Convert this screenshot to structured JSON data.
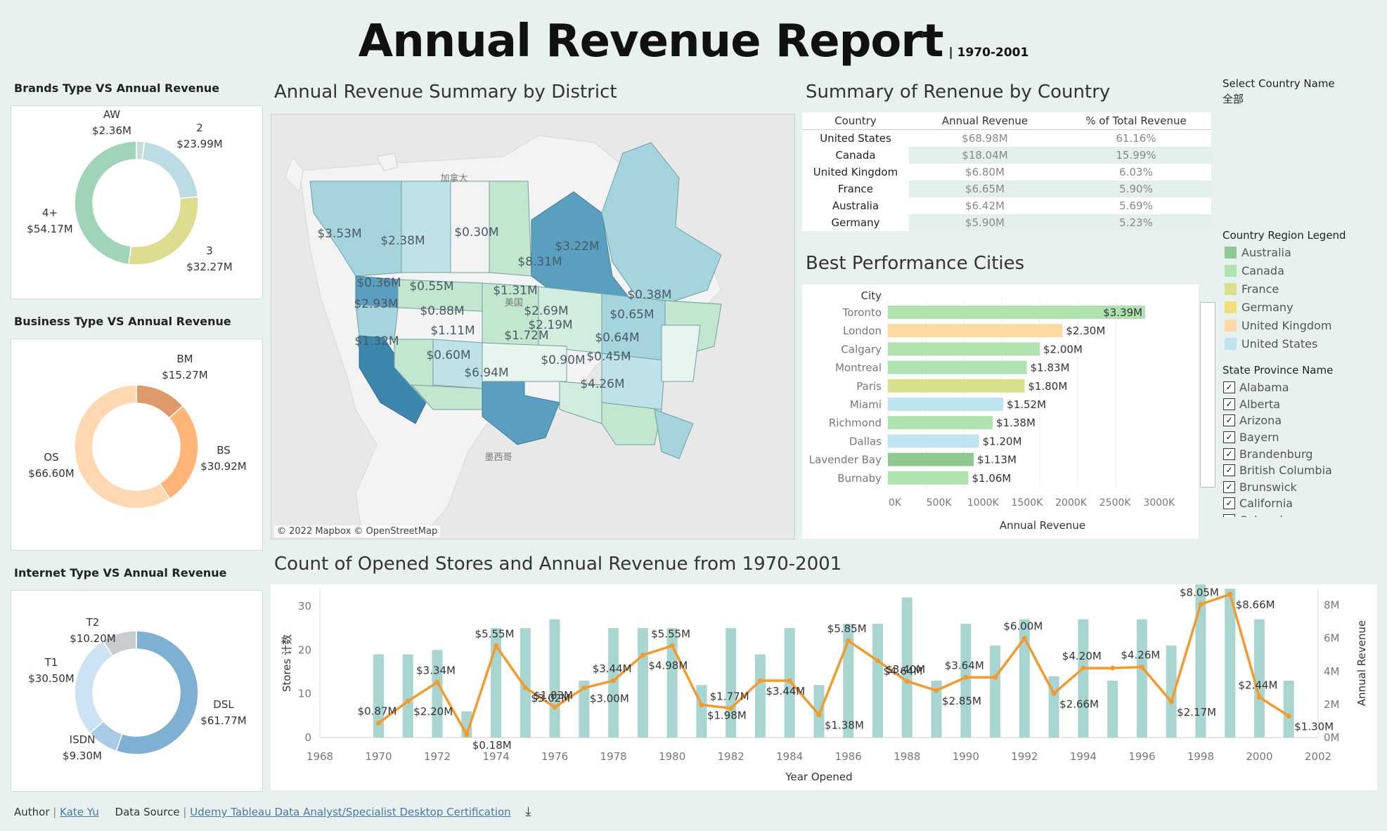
{
  "header": {
    "title": "Annual Revenue Report",
    "subtitle": "| 1970-2001"
  },
  "brands": {
    "title": "Brands Type VS Annual Revenue",
    "slices": [
      {
        "name": "AW",
        "value": "$2.36M",
        "v": 2.36,
        "color": "#c9dcd6"
      },
      {
        "name": "2",
        "value": "$23.99M",
        "v": 23.99,
        "color": "#bcdce3"
      },
      {
        "name": "3",
        "value": "$32.27M",
        "v": 32.27,
        "color": "#dedc8f"
      },
      {
        "name": "4+",
        "value": "$54.17M",
        "v": 54.17,
        "color": "#9fd4b8"
      }
    ]
  },
  "business": {
    "title": "Business Type VS Annual Revenue",
    "slices": [
      {
        "name": "BM",
        "value": "$15.27M",
        "v": 15.27,
        "color": "#de9a6b"
      },
      {
        "name": "BS",
        "value": "$30.92M",
        "v": 30.92,
        "color": "#ffb577"
      },
      {
        "name": "OS",
        "value": "$66.60M",
        "v": 66.6,
        "color": "#ffd8b2"
      }
    ]
  },
  "internet": {
    "title": "Internet Type VS Annual Revenue",
    "slices": [
      {
        "name": "DSL",
        "value": "$61.77M",
        "v": 61.77,
        "color": "#7fb0d2"
      },
      {
        "name": "ISDN",
        "value": "$9.30M",
        "v": 9.3,
        "color": "#a7cbe6"
      },
      {
        "name": "T1",
        "value": "$30.50M",
        "v": 30.5,
        "color": "#cde2f2"
      },
      {
        "name": "T2",
        "value": "$10.20M",
        "v": 10.2,
        "color": "#c8cccf"
      }
    ]
  },
  "map": {
    "title": "Annual Revenue Summary by District",
    "credit": "© 2022 Mapbox © OpenStreetMap",
    "place_labels": [
      "加拿大",
      "美国",
      "墨西哥"
    ],
    "labels": [
      "$3.53M",
      "$2.38M",
      "$0.30M",
      "$8.31M",
      "$3.22M",
      "$0.36M",
      "$0.55M",
      "$1.31M",
      "$0.38M",
      "$2.93M",
      "$0.88M",
      "$2.69M",
      "$0.65M",
      "$1.11M",
      "$1.72M",
      "$2.19M",
      "$0.64M",
      "$1.32M",
      "$0.60M",
      "$0.90M",
      "$0.45M",
      "$6.94M",
      "$4.26M"
    ]
  },
  "country_table": {
    "title": "Summary of Renenue by Country",
    "headers": [
      "Country",
      "Annual Revenue",
      "% of Total  Revenue"
    ],
    "rows": [
      [
        "United States",
        "$68.98M",
        "61.16%"
      ],
      [
        "Canada",
        "$18.04M",
        "15.99%"
      ],
      [
        "United Kingdom",
        "$6.80M",
        "6.03%"
      ],
      [
        "France",
        "$6.65M",
        "5.90%"
      ],
      [
        "Australia",
        "$6.42M",
        "5.69%"
      ],
      [
        "Germany",
        "$5.90M",
        "5.23%"
      ]
    ]
  },
  "cities": {
    "title": "Best Performance Cities",
    "col_label": "City",
    "xlabel": "Annual Revenue"
  },
  "filters": {
    "select_label": "Select  Country Name",
    "select_value": "全部",
    "legend_title": "Country Region Legend",
    "legend": [
      {
        "name": "Australia",
        "color": "#8ec994"
      },
      {
        "name": "Canada",
        "color": "#b0e2b0"
      },
      {
        "name": "France",
        "color": "#d8e08a"
      },
      {
        "name": "Germany",
        "color": "#f3de7a"
      },
      {
        "name": "United Kingdom",
        "color": "#fdd9a1"
      },
      {
        "name": "United States",
        "color": "#bfe3ef"
      }
    ],
    "state_title": "State Province Name",
    "check_mark": "✓",
    "states": [
      "Alabama",
      "Alberta",
      "Arizona",
      "Bayern",
      "Brandenburg",
      "British Columbia",
      "Brunswick",
      "California",
      "Colorado"
    ]
  },
  "combo": {
    "title": "Count of Opened Stores and Annual Revenue from 1970-2001"
  },
  "footer": {
    "author_label": "Author",
    "sep": "|",
    "author": "Kate Yu",
    "source_label": "Data Source",
    "source": "Udemy Tableau Data Analyst/Specialist Desktop Certification",
    "download_icon": "⤓"
  },
  "chart_data": [
    {
      "type": "bar",
      "title": "Best Performance Cities",
      "xlabel": "Annual Revenue",
      "ylabel": "City",
      "categories": [
        "Toronto",
        "London",
        "Calgary",
        "Montreal",
        "Paris",
        "Miami",
        "Richmond",
        "Dallas",
        "Lavender Bay",
        "Burnaby"
      ],
      "values": [
        3390000,
        2300000,
        2000000,
        1830000,
        1800000,
        1520000,
        1380000,
        1200000,
        1130000,
        1060000
      ],
      "labels": [
        "$3.39M",
        "$2.30M",
        "$2.00M",
        "$1.83M",
        "$1.80M",
        "$1.52M",
        "$1.38M",
        "$1.20M",
        "$1.13M",
        "$1.06M"
      ],
      "countries": [
        "Canada",
        "United Kingdom",
        "Canada",
        "Canada",
        "France",
        "United States",
        "Canada",
        "United States",
        "Australia",
        "Canada"
      ],
      "xticks": [
        "0K",
        "500K",
        "1000K",
        "1500K",
        "2000K",
        "2500K",
        "3000K"
      ],
      "xlim": [
        0,
        3500000
      ]
    },
    {
      "type": "bar+line",
      "title": "Count of Opened Stores and Annual Revenue from 1970-2001",
      "xlabel": "Year Opened",
      "ylabel": "Stores 计数",
      "y2label": "Annual Revenue",
      "xlim": [
        1968,
        2002
      ],
      "ylim": [
        0,
        34
      ],
      "y2lim": [
        0,
        9
      ],
      "xticks": [
        "1968",
        "1970",
        "1972",
        "1974",
        "1976",
        "1978",
        "1980",
        "1982",
        "1984",
        "1986",
        "1988",
        "1990",
        "1992",
        "1994",
        "1996",
        "1998",
        "2000",
        "2002"
      ],
      "yticks": [
        "0",
        "10",
        "20",
        "30"
      ],
      "y2ticks": [
        "0M",
        "2M",
        "4M",
        "6M",
        "8M"
      ],
      "years": [
        1970,
        1971,
        1972,
        1973,
        1974,
        1975,
        1976,
        1977,
        1978,
        1979,
        1980,
        1981,
        1982,
        1983,
        1984,
        1985,
        1986,
        1987,
        1988,
        1989,
        1990,
        1991,
        1992,
        1993,
        1994,
        1995,
        1996,
        1997,
        1998,
        1999,
        2000,
        2001
      ],
      "stores": [
        19,
        19,
        20,
        6,
        25,
        25,
        27,
        13,
        25,
        25,
        25,
        12,
        25,
        19,
        25,
        12,
        26,
        26,
        32,
        13,
        26,
        21,
        27,
        14,
        27,
        13,
        27,
        21,
        35,
        34,
        27,
        13
      ],
      "revenue": [
        0.87,
        2.2,
        3.34,
        0.18,
        5.55,
        3.02,
        1.83,
        3.0,
        3.44,
        4.98,
        5.55,
        1.98,
        1.77,
        3.44,
        3.44,
        1.38,
        5.85,
        4.64,
        3.4,
        2.85,
        3.64,
        3.64,
        6.0,
        2.66,
        4.2,
        4.2,
        4.26,
        2.17,
        8.05,
        8.66,
        2.44,
        1.3
      ],
      "revenue_labels": [
        "$0.87M",
        "$2.20M",
        "$3.34M",
        "$0.18M",
        "$5.55M",
        "$3.02M",
        "$1.83M",
        "$3.00M",
        "$3.44M",
        "$4.98M",
        "$5.55M",
        "$1.98M",
        "$1.77M",
        "$3.44M",
        "",
        "$1.38M",
        "$5.85M",
        "$4.64M",
        "$3.40M",
        "$2.85M",
        "$3.64M",
        "",
        "$6.00M",
        "$2.66M",
        "$4.20M",
        "",
        "$4.26M",
        "$2.17M",
        "$8.05M",
        "$8.66M",
        "$2.44M",
        "$1.30M"
      ]
    }
  ]
}
